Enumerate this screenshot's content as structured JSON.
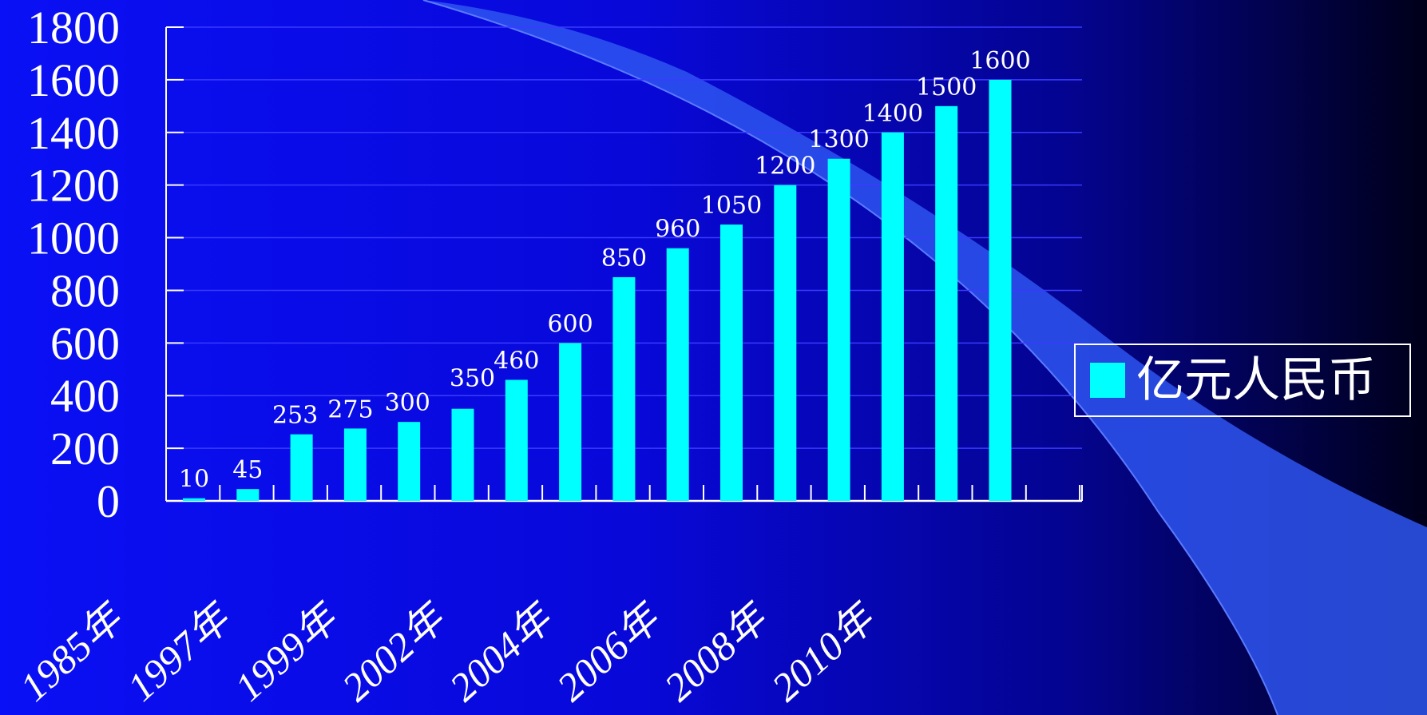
{
  "chart_data": {
    "type": "bar",
    "categories": [
      "1985年",
      "",
      "1997年",
      "",
      "1999年",
      "",
      "2002年",
      "",
      "2004年",
      "",
      "2006年",
      "",
      "2008年",
      "",
      "2010年",
      ""
    ],
    "series": [
      {
        "name": "亿元人民币",
        "values": [
          10,
          45,
          253,
          275,
          300,
          350,
          460,
          600,
          850,
          960,
          1050,
          1200,
          1300,
          1400,
          1500,
          1600
        ]
      }
    ],
    "data_labels": [
      "10",
      "45",
      "253",
      "275",
      "300",
      "350",
      "460",
      "600",
      "850",
      "960",
      "1050",
      "1200",
      "1300",
      "1400",
      "1500",
      "1600"
    ],
    "y_ticks": [
      "0",
      "200",
      "400",
      "600",
      "800",
      "1000",
      "1200",
      "1400",
      "1600",
      "1800"
    ],
    "ylim": [
      0,
      1800
    ],
    "grid": true,
    "legend_position": "right",
    "colors": {
      "bar": "#00ffff",
      "grid": "#3a3aff",
      "text": "#ffffff"
    }
  }
}
